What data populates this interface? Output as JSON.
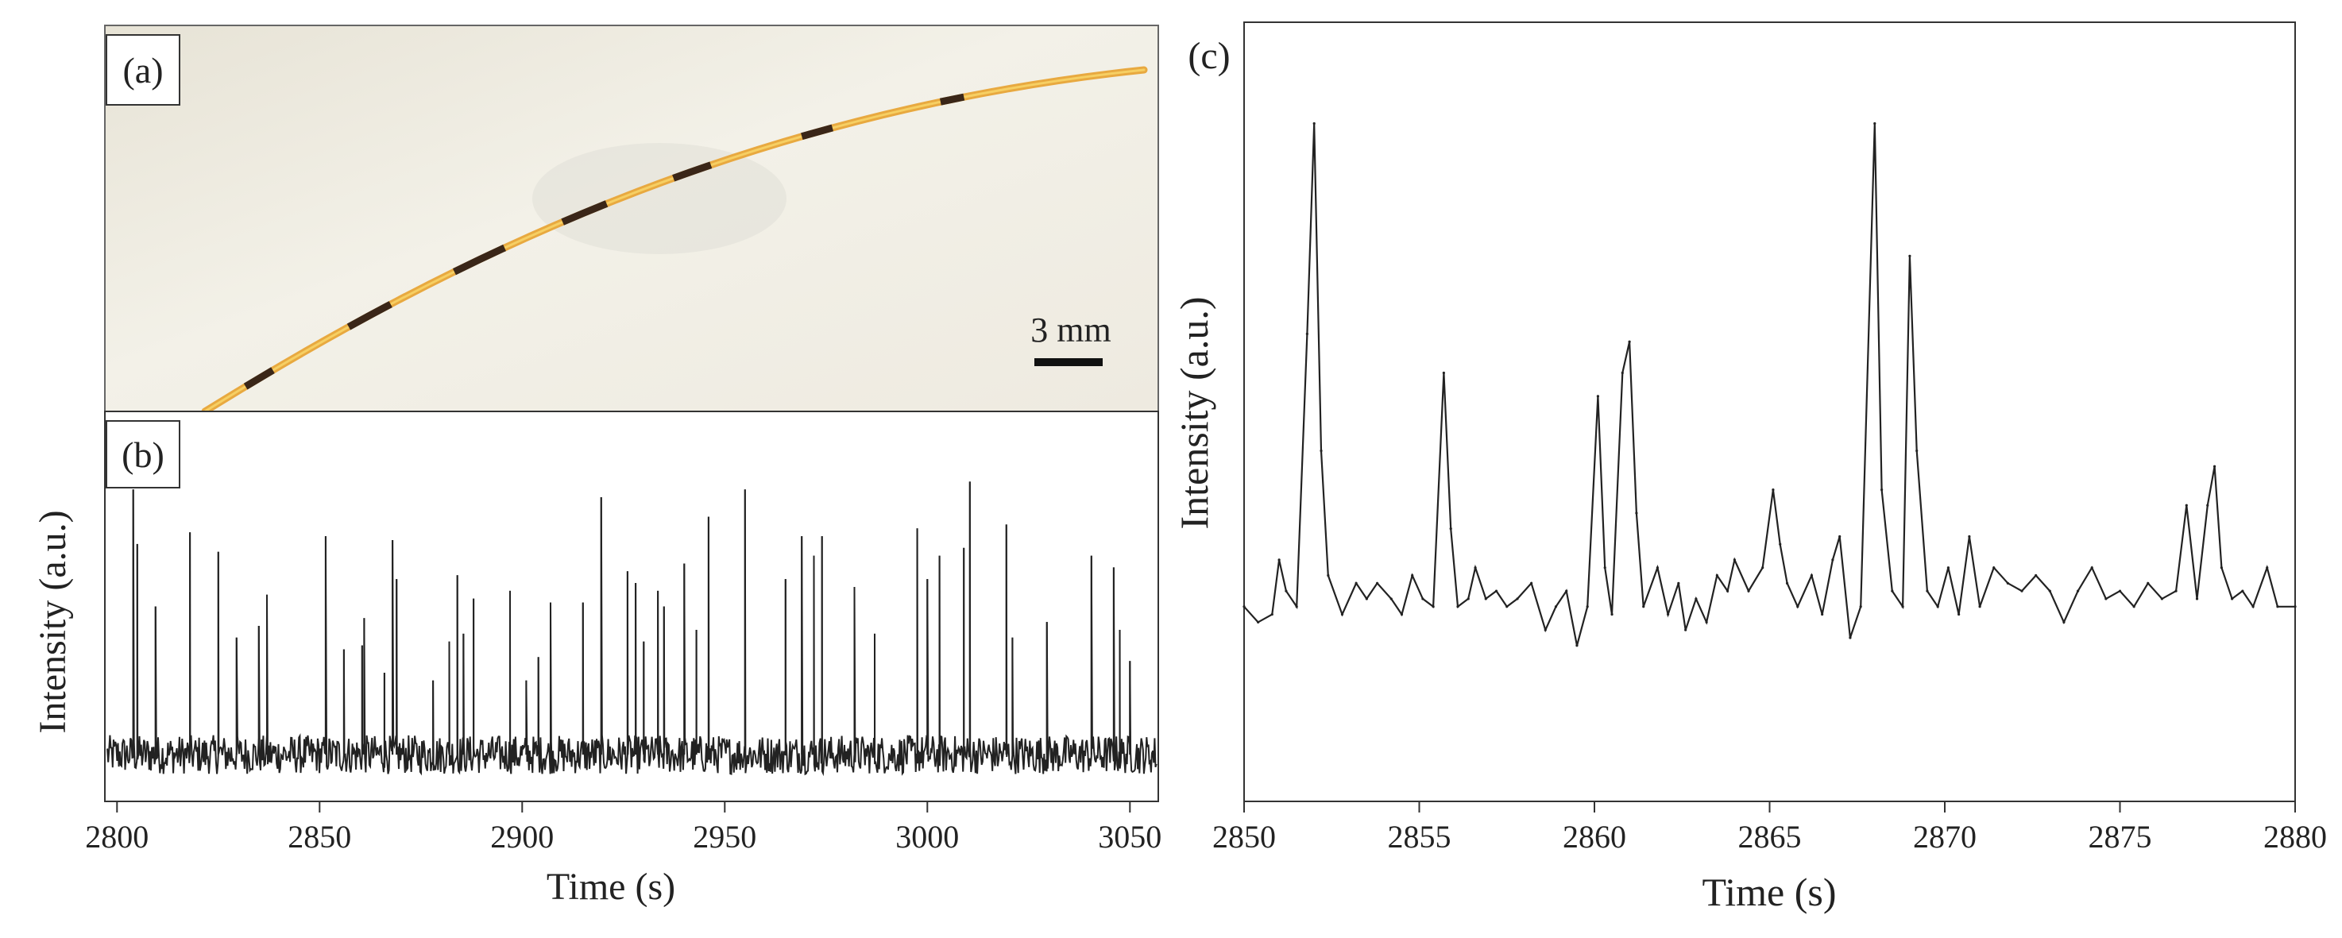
{
  "chart_data": [
    {
      "panel": "(a)",
      "type": "photo",
      "scale_bar_label": "3 mm"
    },
    {
      "panel": "(b)",
      "type": "line",
      "xlabel": "Time (s)",
      "ylabel": "Intensity (a.u.)",
      "xlim": [
        2797,
        3057
      ],
      "ylim": [
        0,
        1
      ],
      "xticks": [
        2800,
        2850,
        2900,
        2950,
        3000,
        3050
      ],
      "y_ticks_shown": false,
      "baseline": 0.12,
      "noise_amplitude": 0.05,
      "spikes": [
        {
          "x": 2804.0,
          "y": 0.8
        },
        {
          "x": 2805.0,
          "y": 0.66
        },
        {
          "x": 2809.5,
          "y": 0.5
        },
        {
          "x": 2818.0,
          "y": 0.69
        },
        {
          "x": 2825.0,
          "y": 0.64
        },
        {
          "x": 2829.5,
          "y": 0.42
        },
        {
          "x": 2835.0,
          "y": 0.45
        },
        {
          "x": 2837.0,
          "y": 0.53
        },
        {
          "x": 2851.5,
          "y": 0.68
        },
        {
          "x": 2856.0,
          "y": 0.39
        },
        {
          "x": 2860.5,
          "y": 0.4
        },
        {
          "x": 2861.0,
          "y": 0.47
        },
        {
          "x": 2866.0,
          "y": 0.33
        },
        {
          "x": 2868.0,
          "y": 0.67
        },
        {
          "x": 2869.0,
          "y": 0.57
        },
        {
          "x": 2878.0,
          "y": 0.31
        },
        {
          "x": 2882.0,
          "y": 0.41
        },
        {
          "x": 2884.0,
          "y": 0.58
        },
        {
          "x": 2885.5,
          "y": 0.43
        },
        {
          "x": 2888.0,
          "y": 0.52
        },
        {
          "x": 2897.0,
          "y": 0.54
        },
        {
          "x": 2901.0,
          "y": 0.31
        },
        {
          "x": 2904.0,
          "y": 0.37
        },
        {
          "x": 2907.0,
          "y": 0.51
        },
        {
          "x": 2915.0,
          "y": 0.51
        },
        {
          "x": 2919.5,
          "y": 0.78
        },
        {
          "x": 2926.0,
          "y": 0.59
        },
        {
          "x": 2928.0,
          "y": 0.56
        },
        {
          "x": 2930.0,
          "y": 0.41
        },
        {
          "x": 2933.5,
          "y": 0.54
        },
        {
          "x": 2935.0,
          "y": 0.5
        },
        {
          "x": 2940.0,
          "y": 0.61
        },
        {
          "x": 2943.0,
          "y": 0.44
        },
        {
          "x": 2946.0,
          "y": 0.73
        },
        {
          "x": 2955.0,
          "y": 0.8
        },
        {
          "x": 2965.0,
          "y": 0.57
        },
        {
          "x": 2969.0,
          "y": 0.68
        },
        {
          "x": 2972.0,
          "y": 0.63
        },
        {
          "x": 2974.0,
          "y": 0.68
        },
        {
          "x": 2982.0,
          "y": 0.55
        },
        {
          "x": 2987.0,
          "y": 0.43
        },
        {
          "x": 2997.5,
          "y": 0.7
        },
        {
          "x": 3000.0,
          "y": 0.57
        },
        {
          "x": 3003.0,
          "y": 0.63
        },
        {
          "x": 3009.0,
          "y": 0.65
        },
        {
          "x": 3010.5,
          "y": 0.82
        },
        {
          "x": 3019.5,
          "y": 0.71
        },
        {
          "x": 3021.0,
          "y": 0.42
        },
        {
          "x": 3029.5,
          "y": 0.46
        },
        {
          "x": 3040.5,
          "y": 0.63
        },
        {
          "x": 3046.0,
          "y": 0.6
        },
        {
          "x": 3047.5,
          "y": 0.44
        },
        {
          "x": 3050.0,
          "y": 0.36
        }
      ]
    },
    {
      "panel": "(c)",
      "type": "line",
      "xlabel": "Time (s)",
      "ylabel": "Intensity (a.u.)",
      "xlim": [
        2850,
        2880
      ],
      "ylim": [
        0,
        1
      ],
      "xticks": [
        2850,
        2855,
        2860,
        2865,
        2870,
        2875,
        2880
      ],
      "y_ticks_shown": false,
      "points": [
        [
          2850.0,
          0.25
        ],
        [
          2850.4,
          0.23
        ],
        [
          2850.8,
          0.24
        ],
        [
          2851.0,
          0.31
        ],
        [
          2851.2,
          0.27
        ],
        [
          2851.5,
          0.25
        ],
        [
          2851.8,
          0.6
        ],
        [
          2852.0,
          0.87
        ],
        [
          2852.2,
          0.45
        ],
        [
          2852.4,
          0.29
        ],
        [
          2852.8,
          0.24
        ],
        [
          2853.2,
          0.28
        ],
        [
          2853.5,
          0.26
        ],
        [
          2853.8,
          0.28
        ],
        [
          2854.2,
          0.26
        ],
        [
          2854.5,
          0.24
        ],
        [
          2854.8,
          0.29
        ],
        [
          2855.1,
          0.26
        ],
        [
          2855.4,
          0.25
        ],
        [
          2855.7,
          0.55
        ],
        [
          2855.9,
          0.35
        ],
        [
          2856.1,
          0.25
        ],
        [
          2856.4,
          0.26
        ],
        [
          2856.6,
          0.3
        ],
        [
          2856.9,
          0.26
        ],
        [
          2857.2,
          0.27
        ],
        [
          2857.5,
          0.25
        ],
        [
          2857.8,
          0.26
        ],
        [
          2858.2,
          0.28
        ],
        [
          2858.6,
          0.22
        ],
        [
          2858.9,
          0.25
        ],
        [
          2859.2,
          0.27
        ],
        [
          2859.5,
          0.2
        ],
        [
          2859.8,
          0.25
        ],
        [
          2860.1,
          0.52
        ],
        [
          2860.3,
          0.3
        ],
        [
          2860.5,
          0.24
        ],
        [
          2860.8,
          0.55
        ],
        [
          2861.0,
          0.59
        ],
        [
          2861.2,
          0.37
        ],
        [
          2861.4,
          0.25
        ],
        [
          2861.8,
          0.3
        ],
        [
          2862.1,
          0.24
        ],
        [
          2862.4,
          0.28
        ],
        [
          2862.6,
          0.22
        ],
        [
          2862.9,
          0.26
        ],
        [
          2863.2,
          0.23
        ],
        [
          2863.5,
          0.29
        ],
        [
          2863.8,
          0.27
        ],
        [
          2864.0,
          0.31
        ],
        [
          2864.4,
          0.27
        ],
        [
          2864.8,
          0.3
        ],
        [
          2865.1,
          0.4
        ],
        [
          2865.3,
          0.33
        ],
        [
          2865.5,
          0.28
        ],
        [
          2865.8,
          0.25
        ],
        [
          2866.2,
          0.29
        ],
        [
          2866.5,
          0.24
        ],
        [
          2866.8,
          0.31
        ],
        [
          2867.0,
          0.34
        ],
        [
          2867.3,
          0.21
        ],
        [
          2867.6,
          0.25
        ],
        [
          2868.0,
          0.87
        ],
        [
          2868.2,
          0.4
        ],
        [
          2868.5,
          0.27
        ],
        [
          2868.8,
          0.25
        ],
        [
          2869.0,
          0.7
        ],
        [
          2869.2,
          0.45
        ],
        [
          2869.5,
          0.27
        ],
        [
          2869.8,
          0.25
        ],
        [
          2870.1,
          0.3
        ],
        [
          2870.4,
          0.24
        ],
        [
          2870.7,
          0.34
        ],
        [
          2871.0,
          0.25
        ],
        [
          2871.4,
          0.3
        ],
        [
          2871.8,
          0.28
        ],
        [
          2872.2,
          0.27
        ],
        [
          2872.6,
          0.29
        ],
        [
          2873.0,
          0.27
        ],
        [
          2873.4,
          0.23
        ],
        [
          2873.8,
          0.27
        ],
        [
          2874.2,
          0.3
        ],
        [
          2874.6,
          0.26
        ],
        [
          2875.0,
          0.27
        ],
        [
          2875.4,
          0.25
        ],
        [
          2875.8,
          0.28
        ],
        [
          2876.2,
          0.26
        ],
        [
          2876.6,
          0.27
        ],
        [
          2876.9,
          0.38
        ],
        [
          2877.2,
          0.26
        ],
        [
          2877.5,
          0.38
        ],
        [
          2877.7,
          0.43
        ],
        [
          2877.9,
          0.3
        ],
        [
          2878.2,
          0.26
        ],
        [
          2878.5,
          0.27
        ],
        [
          2878.8,
          0.25
        ],
        [
          2879.2,
          0.3
        ],
        [
          2879.5,
          0.25
        ],
        [
          2880.0,
          0.25
        ]
      ]
    }
  ],
  "colors": {
    "photo_bg": "#f1eee3",
    "fiber_bright": "#e8a940",
    "fiber_dark": "#3a2618",
    "line": "#222222",
    "axis": "#333333"
  }
}
